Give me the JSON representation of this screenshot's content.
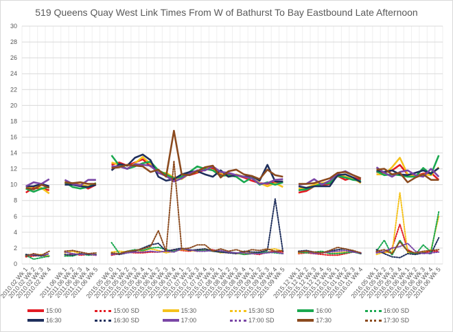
{
  "chart_data": {
    "type": "line",
    "title": "519 Queens Quay West Link Times From W of Bathurst To Bay Eastbound Late Afternoon",
    "xlabel": "",
    "ylabel": "",
    "ylim": [
      0,
      30
    ],
    "yticks": [
      0,
      2,
      4,
      6,
      8,
      10,
      12,
      14,
      16,
      18,
      20,
      22,
      24,
      26,
      28,
      30
    ],
    "grid": true,
    "legend_position": "bottom",
    "categories": [
      "2010.02 Wk 1",
      "2010.02 Wk 2",
      "2010.02 Wk 3",
      "2010.02 Wk 4",
      "",
      "2011.06 Wk 1",
      "2011.06 Wk 2",
      "2011.06 Wk 3",
      "2011.06 Wk 4",
      "2011.06 Wk 5",
      "",
      "2015.05 Wk 0",
      "2015.05 Wk 1",
      "2015.05 Wk 2",
      "2015.05 Wk 3",
      "2015.05 Wk 4",
      "2015.06 Wk 1",
      "2015.06 Wk 2",
      "2015.06 Wk 3",
      "2015.06 Wk 4",
      "2015.07 Wk 1",
      "2015.07 Wk 2",
      "2015.07 Wk 3",
      "2015.07 Wk 4",
      "2015.07 Wk 5",
      "2015.08 Wk 1",
      "2015.08 Wk 2",
      "2015.08 Wk 3",
      "2015.08 Wk 4",
      "2015.09 Wk 1",
      "2015.09 Wk 2",
      "2015.09 Wk 3",
      "2015.09 Wk 4",
      "2015.09 Wk 5",
      "",
      "2015.12 Wk 1",
      "2015.12 Wk 2",
      "2015.12 Wk 3",
      "2015.12 Wk 4",
      "2015.12 Wk 5",
      "2016.01 Wk 1",
      "2016.01 Wk 2",
      "2016.01 Wk 3",
      "2016.01 Wk 4",
      "",
      "2016.05 Wk 1",
      "2016.05 Wk 2",
      "2016.05 Wk 3",
      "2016.05 Wk 4",
      "2016.06 Wk 1",
      "2016.06 Wk 2",
      "2016.06 Wk 3",
      "2016.06 Wk 4",
      "2016.06 Wk 5"
    ],
    "series": [
      {
        "name": "15:00",
        "color": "#e31b23",
        "style": "solid",
        "values": [
          9.0,
          9.6,
          9.5,
          9.3,
          null,
          10.2,
          10.1,
          10.0,
          9.5,
          10.0,
          null,
          12.5,
          12.8,
          12.4,
          12.8,
          13.2,
          12.3,
          11.8,
          11.3,
          10.6,
          11.3,
          11.2,
          11.5,
          11.9,
          12.1,
          11.3,
          11.4,
          11.2,
          10.9,
          10.5,
          10.2,
          10.1,
          10.3,
          10.4,
          null,
          9.0,
          9.2,
          9.8,
          9.9,
          10.1,
          11.1,
          10.6,
          10.9,
          10.6,
          null,
          11.6,
          11.5,
          11.8,
          12.5,
          11.3,
          11.1,
          11.4,
          11.5,
          10.6
        ]
      },
      {
        "name": "15:00 SD",
        "color": "#e31b23",
        "style": "dotted",
        "values": [
          0.9,
          1.0,
          1.1,
          0.9,
          null,
          1.0,
          1.3,
          1.1,
          1.2,
          1.1,
          null,
          1.1,
          1.3,
          1.5,
          1.4,
          1.4,
          1.5,
          1.5,
          1.6,
          1.8,
          1.7,
          1.6,
          1.8,
          1.7,
          1.8,
          1.5,
          1.4,
          1.4,
          1.2,
          1.3,
          1.2,
          1.5,
          1.6,
          1.5,
          null,
          1.3,
          1.4,
          1.3,
          1.2,
          1.1,
          1.1,
          1.3,
          1.5,
          1.4,
          null,
          1.5,
          1.4,
          2.0,
          5.0,
          1.8,
          1.3,
          1.4,
          1.6,
          1.6
        ]
      },
      {
        "name": "15:30",
        "color": "#f5c21b",
        "style": "solid",
        "values": [
          9.5,
          9.8,
          9.6,
          8.9,
          null,
          10.4,
          10.0,
          10.0,
          9.8,
          10.2,
          null,
          12.8,
          12.5,
          12.0,
          12.7,
          13.5,
          12.6,
          11.5,
          11.5,
          10.9,
          10.7,
          11.4,
          11.6,
          12.2,
          11.8,
          11.5,
          11.0,
          11.3,
          11.0,
          10.8,
          10.2,
          9.8,
          10.2,
          9.7,
          null,
          9.5,
          9.6,
          10.0,
          10.2,
          10.4,
          11.3,
          11.0,
          10.8,
          10.2,
          null,
          11.3,
          11.3,
          12.2,
          13.4,
          11.3,
          11.0,
          11.3,
          11.2,
          12.2
        ]
      },
      {
        "name": "15:30 SD",
        "color": "#f5c21b",
        "style": "dotted",
        "values": [
          1.2,
          1.1,
          1.2,
          1.0,
          null,
          1.4,
          1.6,
          1.3,
          1.3,
          1.2,
          null,
          1.5,
          1.6,
          1.5,
          1.7,
          1.6,
          1.9,
          1.7,
          1.4,
          1.6,
          1.8,
          1.7,
          1.6,
          1.9,
          1.7,
          1.4,
          1.5,
          1.3,
          1.3,
          1.5,
          1.4,
          1.8,
          1.9,
          1.6,
          null,
          1.4,
          1.5,
          1.4,
          1.5,
          1.3,
          1.4,
          1.5,
          1.6,
          1.3,
          null,
          1.2,
          1.5,
          1.4,
          9.0,
          1.4,
          1.3,
          1.5,
          1.8,
          6.0
        ]
      },
      {
        "name": "16:00",
        "color": "#1aa84f",
        "style": "solid",
        "values": [
          9.5,
          9.1,
          9.5,
          9.7,
          null,
          10.3,
          9.7,
          9.5,
          9.7,
          10.2,
          null,
          13.7,
          12.4,
          12.0,
          12.3,
          12.7,
          12.9,
          11.8,
          11.3,
          10.8,
          11.0,
          11.6,
          12.3,
          12.0,
          11.8,
          11.1,
          11.2,
          11.0,
          10.3,
          10.9,
          10.0,
          10.3,
          10.0,
          10.3,
          null,
          9.3,
          9.4,
          9.8,
          10.1,
          10.2,
          11.1,
          10.9,
          10.6,
          10.5,
          null,
          11.7,
          11.2,
          11.3,
          11.2,
          11.0,
          11.0,
          12.1,
          11.3,
          13.7
        ]
      },
      {
        "name": "16:00 SD",
        "color": "#1aa84f",
        "style": "dotted",
        "values": [
          1.1,
          0.6,
          0.8,
          1.0,
          null,
          1.0,
          1.0,
          1.3,
          1.1,
          1.2,
          null,
          2.7,
          1.3,
          1.6,
          1.8,
          1.7,
          2.0,
          2.1,
          1.8,
          1.6,
          1.9,
          1.8,
          1.7,
          1.7,
          1.6,
          1.5,
          1.5,
          1.4,
          1.2,
          1.3,
          1.4,
          1.5,
          1.4,
          1.3,
          null,
          1.5,
          1.4,
          1.5,
          1.6,
          1.3,
          1.3,
          1.4,
          1.5,
          1.3,
          null,
          1.6,
          3.0,
          1.1,
          3.0,
          1.6,
          1.2,
          2.4,
          1.5,
          6.6
        ]
      },
      {
        "name": "16:30",
        "color": "#1f2f5c",
        "style": "solid",
        "values": [
          9.8,
          9.8,
          10.1,
          9.8,
          null,
          10.0,
          10.0,
          9.8,
          9.7,
          10.0,
          null,
          11.8,
          12.6,
          12.4,
          13.4,
          13.8,
          13.1,
          11.0,
          10.5,
          10.7,
          11.3,
          11.6,
          11.7,
          11.3,
          11.0,
          11.8,
          11.0,
          11.2,
          11.0,
          11.1,
          10.5,
          12.5,
          10.4,
          10.4,
          null,
          9.8,
          9.6,
          9.8,
          9.8,
          9.8,
          11.2,
          11.3,
          10.9,
          10.3,
          null,
          11.8,
          11.6,
          11.8,
          11.3,
          11.2,
          11.5,
          11.8,
          11.4,
          12.1
        ]
      },
      {
        "name": "16:30 SD",
        "color": "#1f2f5c",
        "style": "dotted",
        "values": [
          1.2,
          1.1,
          1.0,
          1.3,
          null,
          1.2,
          1.1,
          1.3,
          1.2,
          1.2,
          null,
          1.3,
          1.2,
          1.4,
          1.6,
          2.0,
          2.4,
          2.6,
          1.6,
          1.8,
          2.0,
          1.7,
          1.8,
          1.9,
          1.6,
          1.5,
          1.4,
          1.3,
          1.6,
          1.5,
          1.5,
          1.7,
          8.2,
          1.5,
          null,
          1.6,
          1.7,
          1.5,
          1.4,
          1.6,
          1.8,
          1.9,
          1.6,
          1.3,
          null,
          1.8,
          1.3,
          0.9,
          0.8,
          1.3,
          1.2,
          1.4,
          1.3,
          3.3
        ]
      },
      {
        "name": "17:00",
        "color": "#7a46a6",
        "style": "solid",
        "values": [
          9.8,
          10.3,
          10.1,
          10.7,
          null,
          10.6,
          10.1,
          9.9,
          10.6,
          10.6,
          null,
          12.3,
          12.3,
          12.0,
          12.6,
          12.5,
          12.4,
          11.5,
          11.1,
          10.4,
          10.8,
          11.4,
          11.8,
          11.8,
          12.3,
          11.6,
          11.5,
          11.2,
          11.0,
          10.8,
          10.1,
          10.2,
          10.6,
          10.7,
          null,
          10.0,
          10.1,
          10.7,
          10.0,
          10.5,
          11.4,
          11.7,
          11.2,
          10.8,
          null,
          12.2,
          11.5,
          11.0,
          11.6,
          11.8,
          11.2,
          11.0,
          12.0,
          11.0
        ]
      },
      {
        "name": "17:00 SD",
        "color": "#7a46a6",
        "style": "dotted",
        "values": [
          1.0,
          1.2,
          1.1,
          1.3,
          null,
          1.5,
          1.3,
          1.2,
          1.3,
          1.1,
          null,
          1.2,
          1.3,
          1.4,
          1.5,
          1.5,
          1.6,
          1.5,
          1.6,
          1.5,
          1.9,
          1.8,
          1.6,
          1.6,
          1.7,
          1.7,
          1.5,
          1.4,
          1.4,
          1.3,
          1.3,
          1.4,
          1.5,
          1.3,
          null,
          1.5,
          1.6,
          1.3,
          1.4,
          1.5,
          1.6,
          1.7,
          1.5,
          1.4,
          null,
          1.4,
          1.6,
          2.0,
          2.2,
          2.6,
          1.6,
          1.3,
          1.4,
          1.5
        ]
      },
      {
        "name": "17:30",
        "color": "#8b4a1e",
        "style": "solid",
        "values": [
          9.6,
          9.4,
          10.0,
          9.6,
          null,
          10.3,
          10.2,
          10.3,
          10.1,
          10.1,
          null,
          12.1,
          12.2,
          12.5,
          12.4,
          12.3,
          11.6,
          11.9,
          11.0,
          16.8,
          11.3,
          11.2,
          11.7,
          12.2,
          12.4,
          10.9,
          11.7,
          11.9,
          11.3,
          11.1,
          10.7,
          11.9,
          11.2,
          11.0,
          null,
          10.1,
          10.1,
          10.2,
          10.5,
          10.8,
          11.5,
          11.6,
          11.2,
          10.8,
          null,
          11.9,
          12.0,
          11.3,
          11.5,
          10.3,
          10.9,
          11.3,
          10.6,
          10.6
        ]
      },
      {
        "name": "17:30 SD",
        "color": "#8b4a1e",
        "style": "dotted",
        "values": [
          1.0,
          1.3,
          1.1,
          1.6,
          null,
          1.6,
          1.7,
          1.5,
          1.3,
          1.4,
          null,
          1.4,
          1.3,
          1.6,
          1.7,
          1.9,
          2.2,
          4.2,
          1.6,
          13.0,
          1.9,
          2.0,
          2.4,
          2.4,
          1.6,
          1.9,
          1.6,
          1.8,
          1.5,
          1.8,
          1.7,
          1.9,
          1.6,
          1.7,
          null,
          1.5,
          1.6,
          1.5,
          1.4,
          1.7,
          2.1,
          1.9,
          1.7,
          1.4,
          null,
          1.6,
          1.8,
          1.3,
          2.8,
          1.6,
          1.4,
          1.6,
          1.7,
          1.8
        ]
      }
    ]
  }
}
